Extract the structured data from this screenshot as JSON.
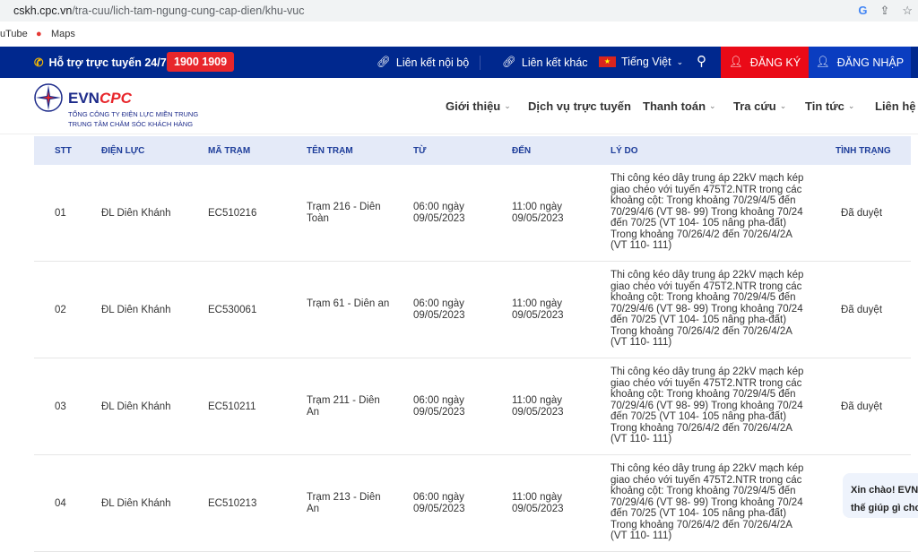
{
  "browser": {
    "url_host": "cskh.cpc.vn",
    "url_path": "/tra-cuu/lich-tam-ngung-cung-cap-dien/khu-vuc",
    "bookmarks": [
      "uTube",
      "Maps"
    ]
  },
  "topbar": {
    "support_label": "Hỗ trợ trực tuyến 24/7:",
    "hotline": "1900 1909",
    "internal_link": "Liên kết nội bộ",
    "other_link": "Liên kết khác",
    "language": "Tiếng Việt",
    "register": "ĐĂNG KÝ",
    "login": "ĐĂNG NHẬP"
  },
  "logo": {
    "brand_a": "EVN",
    "brand_b": "CPC",
    "line1": "TỔNG CÔNG TY ĐIỆN LỰC MIỀN TRUNG",
    "line2": "TRUNG TÂM CHĂM SÓC KHÁCH HÀNG"
  },
  "nav": [
    "Giới thiệu",
    "Dịch vụ trực tuyến",
    "Thanh toán",
    "Tra cứu",
    "Tin tức",
    "Liên hệ"
  ],
  "table": {
    "headers": [
      "STT",
      "ĐIỆN LỰC",
      "MÃ TRẠM",
      "TÊN TRẠM",
      "TỪ",
      "ĐẾN",
      "LÝ DO",
      "TÌNH TRẠNG"
    ],
    "rows": [
      {
        "stt": "01",
        "dl": "ĐL Diên Khánh",
        "code": "EC510216",
        "name": "Trạm 216 - Diên Toàn",
        "from": "06:00 ngày 09/05/2023",
        "to": "11:00 ngày 09/05/2023",
        "reason": "Thi công kéo dây trung áp 22kV mạch kép giao chéo với tuyến 475T2.NTR trong các khoảng cột: Trong khoảng 70/29/4/5 đến 70/29/4/6 (VT 98- 99) Trong khoảng 70/24 đến 70/25 (VT 104- 105 nâng pha-đất) Trong khoảng 70/26/4/2 đến 70/26/4/2A (VT 110- 111)",
        "status": "Đã duyệt"
      },
      {
        "stt": "02",
        "dl": "ĐL Diên Khánh",
        "code": "EC530061",
        "name": "Trạm 61 - Diên an",
        "from": "06:00 ngày 09/05/2023",
        "to": "11:00 ngày 09/05/2023",
        "reason": "Thi công kéo dây trung áp 22kV mạch kép giao chéo với tuyến 475T2.NTR trong các khoảng cột: Trong khoảng 70/29/4/5 đến 70/29/4/6 (VT 98- 99) Trong khoảng 70/24 đến 70/25 (VT 104- 105 nâng pha-đất) Trong khoảng 70/26/4/2 đến 70/26/4/2A (VT 110- 111)",
        "status": "Đã duyệt"
      },
      {
        "stt": "03",
        "dl": "ĐL Diên Khánh",
        "code": "EC510211",
        "name": "Trạm 211 - Diên An",
        "from": "06:00 ngày 09/05/2023",
        "to": "11:00 ngày 09/05/2023",
        "reason": "Thi công kéo dây trung áp 22kV mạch kép giao chéo với tuyến 475T2.NTR trong các khoảng cột: Trong khoảng 70/29/4/5 đến 70/29/4/6 (VT 98- 99) Trong khoảng 70/24 đến 70/25 (VT 104- 105 nâng pha-đất) Trong khoảng 70/26/4/2 đến 70/26/4/2A (VT 110- 111)",
        "status": "Đã duyệt"
      },
      {
        "stt": "04",
        "dl": "ĐL Diên Khánh",
        "code": "EC510213",
        "name": "Trạm 213 - Diên An",
        "from": "06:00 ngày 09/05/2023",
        "to": "11:00 ngày 09/05/2023",
        "reason": "Thi công kéo dây trung áp 22kV mạch kép giao chéo với tuyến 475T2.NTR trong các khoảng cột: Trong khoảng 70/29/4/5 đến 70/29/4/6 (VT 98- 99) Trong khoảng 70/24 đến 70/25 (VT 104- 105 nâng pha-đất) Trong khoảng 70/26/4/2 đến 70/26/4/2A (VT 110- 111)",
        "status": ""
      }
    ]
  },
  "chat": {
    "line1": "Xin chào! EVNC",
    "line2": "thế giúp gì cho"
  }
}
